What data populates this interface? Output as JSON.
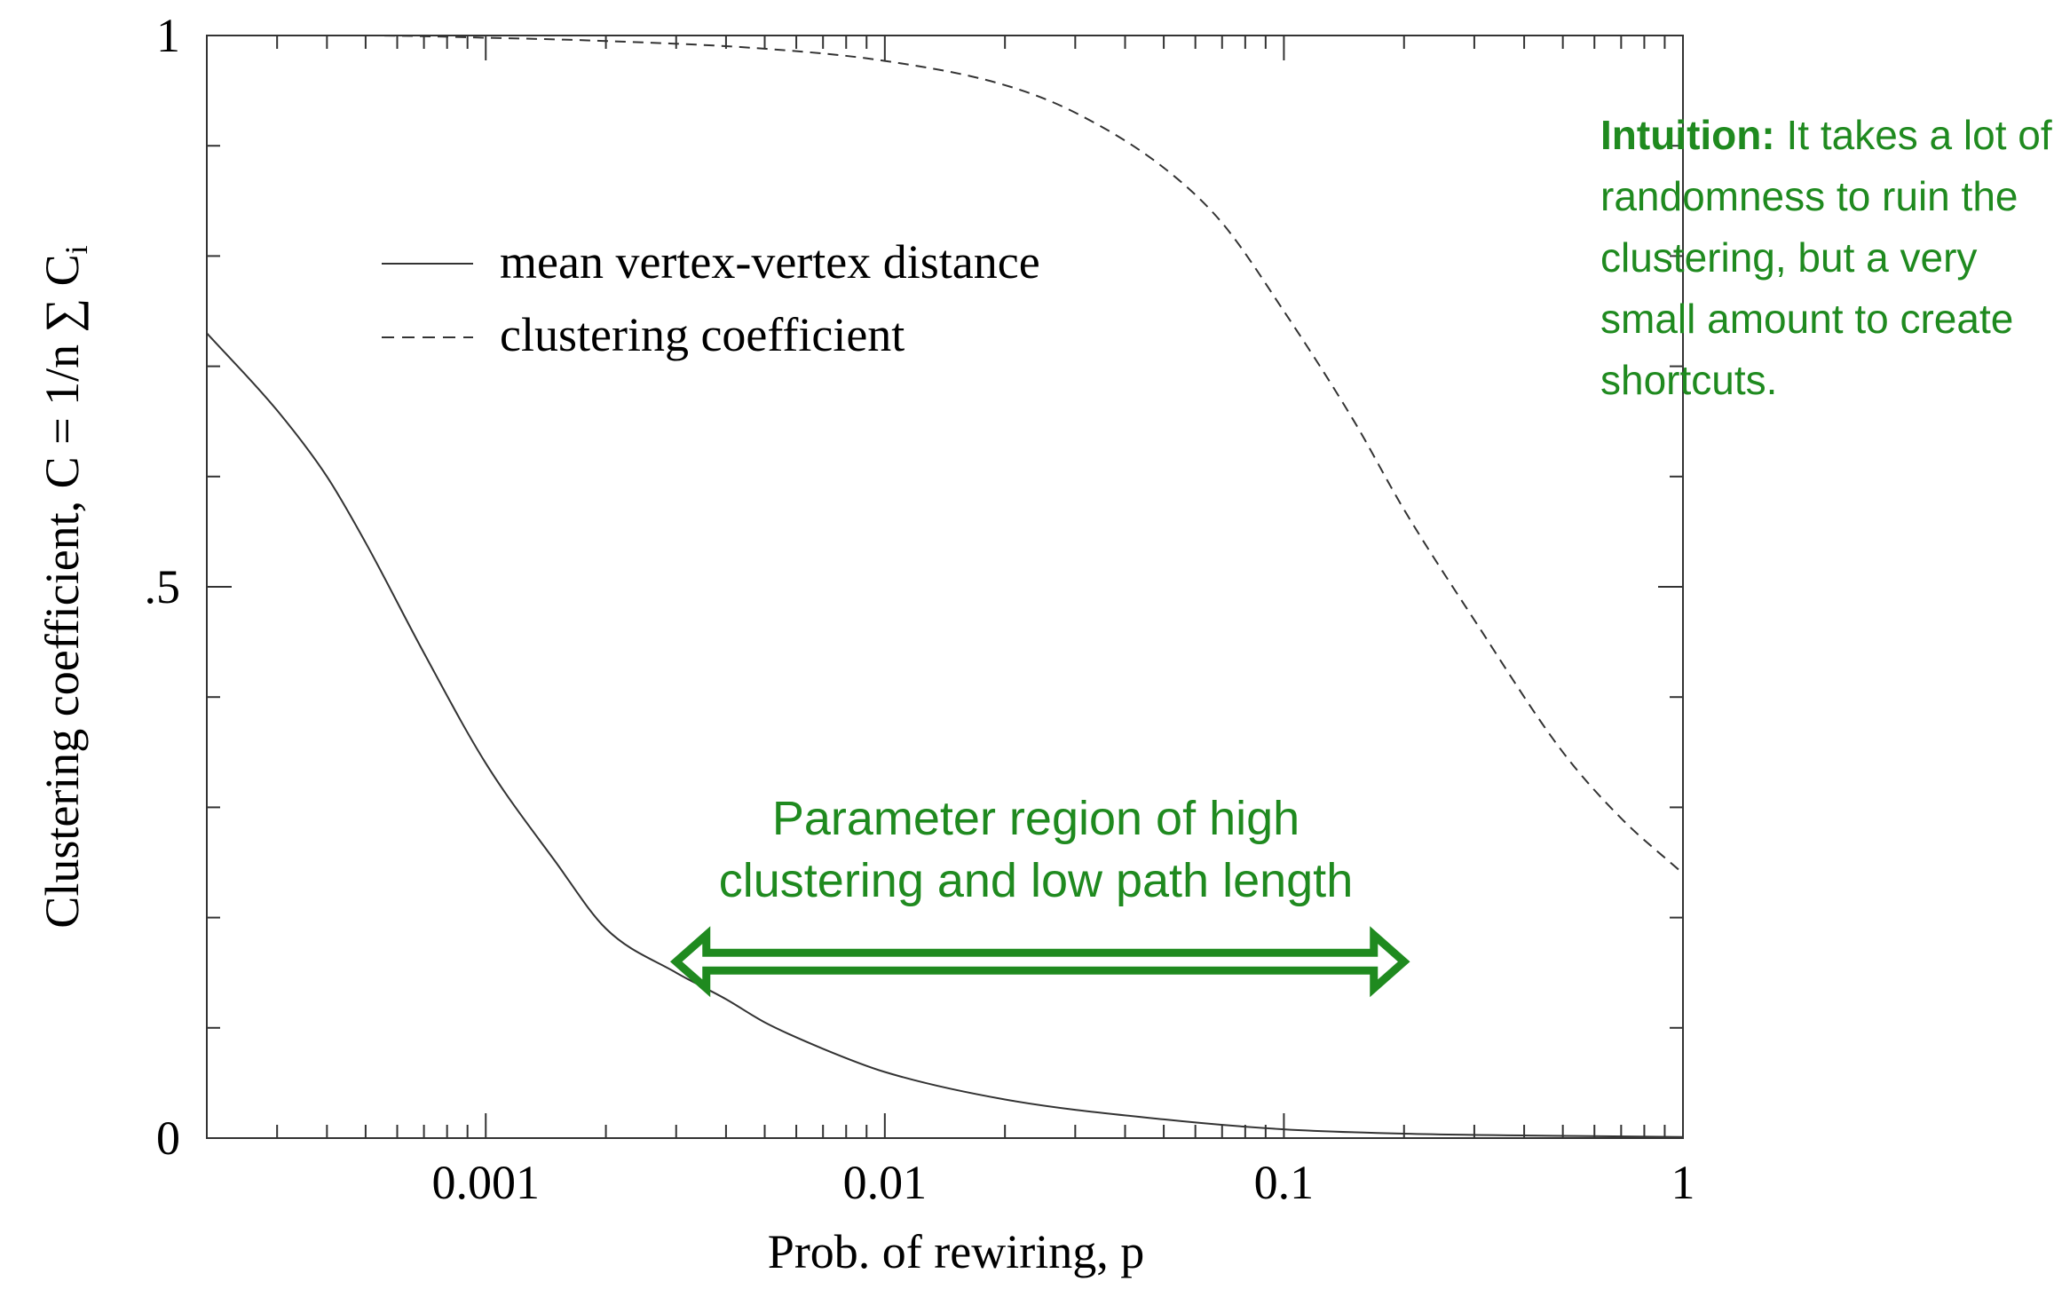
{
  "chart_data": {
    "type": "line",
    "xlabel": "Prob. of rewiring, p",
    "ylabel": "Clustering coefficient, C = 1/n ∑ C",
    "ylabel_subscript": "i",
    "x_scale": "log",
    "xlim": [
      0.0002,
      1
    ],
    "ylim": [
      0,
      1
    ],
    "x_ticks": [
      0.001,
      0.01,
      0.1,
      1
    ],
    "x_tick_labels": [
      "0.001",
      "0.01",
      "0.1",
      "1"
    ],
    "y_ticks": [
      0,
      0.5,
      1
    ],
    "y_tick_labels": [
      "0",
      ".5",
      "1"
    ],
    "grid": false,
    "legend_position": "upper-left",
    "series": [
      {
        "name": "mean vertex-vertex distance",
        "style": "solid",
        "color": "#333333",
        "x": [
          0.0002,
          0.0003,
          0.0004,
          0.0005,
          0.0007,
          0.001,
          0.0015,
          0.002,
          0.003,
          0.004,
          0.005,
          0.007,
          0.01,
          0.02,
          0.05,
          0.1,
          0.2,
          0.5,
          1
        ],
        "y": [
          0.73,
          0.66,
          0.6,
          0.54,
          0.44,
          0.34,
          0.25,
          0.19,
          0.15,
          0.126,
          0.105,
          0.081,
          0.06,
          0.035,
          0.017,
          0.008,
          0.004,
          0.002,
          0.001
        ]
      },
      {
        "name": "clustering coefficient",
        "style": "dashed",
        "color": "#333333",
        "x": [
          0.0002,
          0.0005,
          0.001,
          0.002,
          0.005,
          0.01,
          0.02,
          0.03,
          0.05,
          0.07,
          0.1,
          0.15,
          0.2,
          0.3,
          0.5,
          0.7,
          1
        ],
        "y": [
          1.0,
          1.0,
          0.998,
          0.995,
          0.988,
          0.977,
          0.955,
          0.93,
          0.88,
          0.83,
          0.75,
          0.65,
          0.57,
          0.47,
          0.35,
          0.29,
          0.24
        ]
      }
    ],
    "annotations": [
      {
        "id": "region",
        "lines": [
          "Parameter region of high",
          "clustering and low path length"
        ],
        "arrow_from_x": 0.003,
        "arrow_to_x": 0.2,
        "arrow_y": 0.16,
        "color": "#1f8a1f"
      }
    ]
  },
  "intuition": {
    "bold": "Intuition:",
    "text": " It takes a lot of randomness to ruin the clustering, but a very small amount to create shortcuts."
  }
}
